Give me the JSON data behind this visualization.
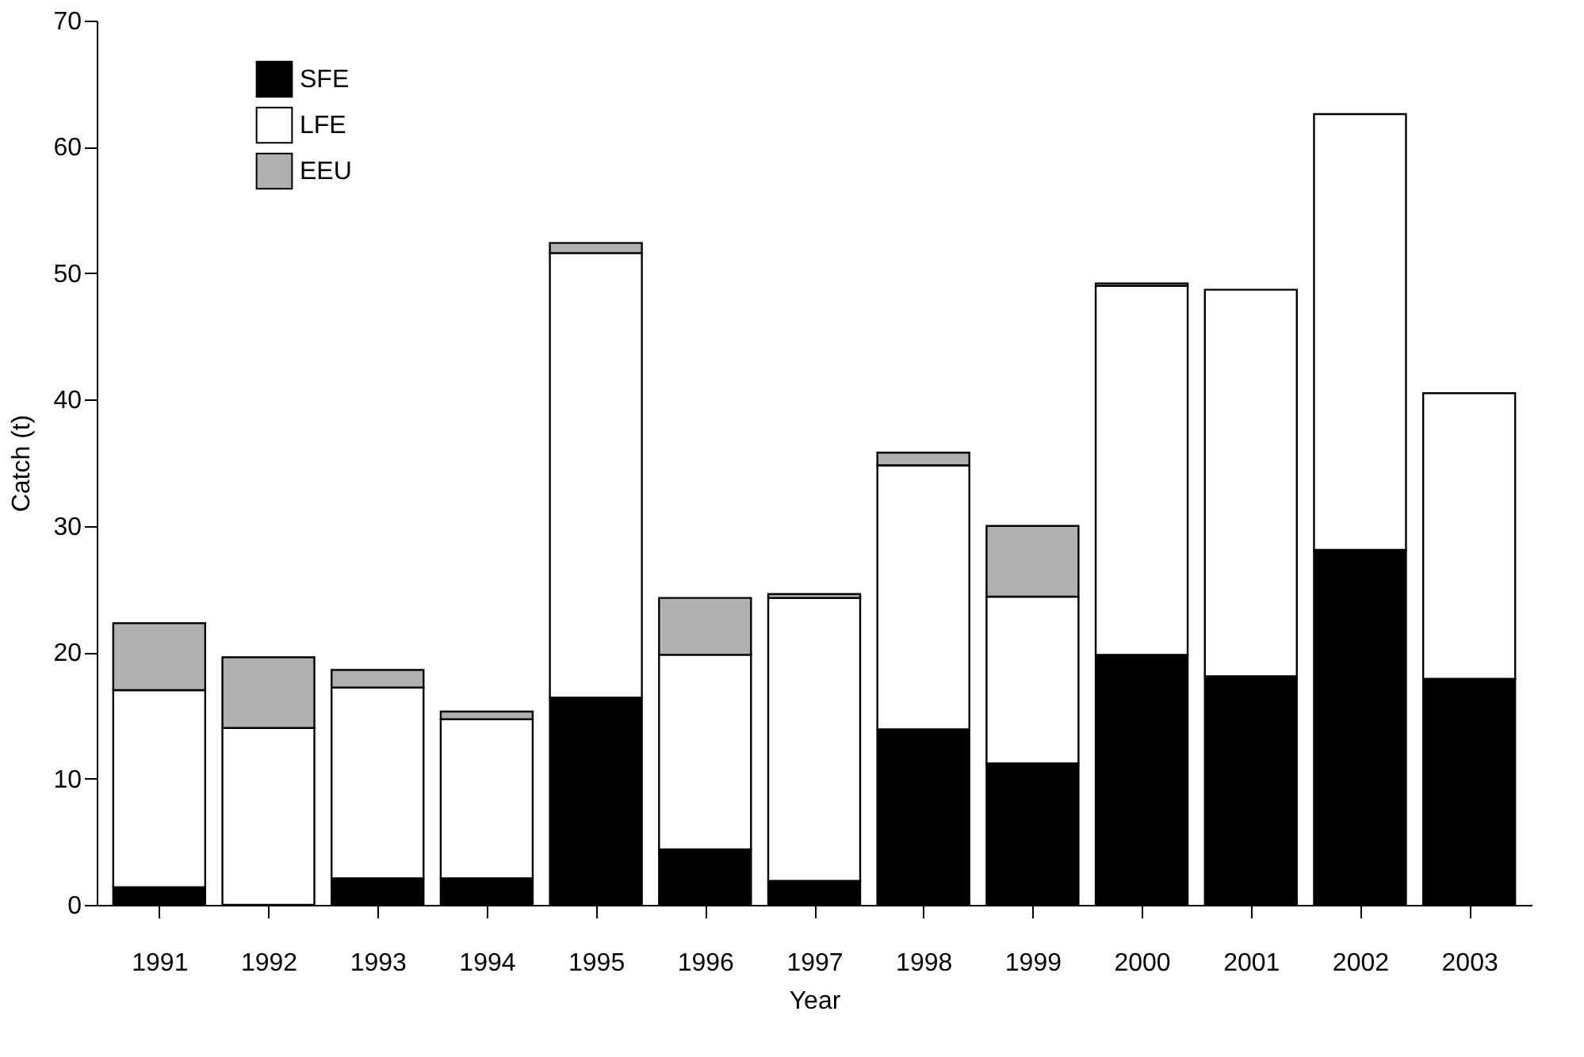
{
  "chart_data": {
    "type": "bar",
    "stacked": true,
    "xlabel": "Year",
    "ylabel": "Catch (t)",
    "categories": [
      "1991",
      "1992",
      "1993",
      "1994",
      "1995",
      "1996",
      "1997",
      "1998",
      "1999",
      "2000",
      "2001",
      "2002",
      "2003"
    ],
    "series": [
      {
        "name": "SFE",
        "color": "#000000",
        "values": [
          1.4,
          0,
          2.1,
          2.1,
          16.4,
          4.4,
          1.9,
          13.9,
          11.2,
          19.8,
          18.1,
          28.1,
          17.9
        ]
      },
      {
        "name": "LFE",
        "color": "#ffffff",
        "values": [
          15.6,
          14.0,
          15.1,
          12.6,
          35.2,
          15.4,
          22.4,
          20.9,
          13.2,
          29.2,
          30.6,
          34.5,
          22.6
        ]
      },
      {
        "name": "EEU",
        "color": "#b0b0b0",
        "values": [
          5.3,
          5.6,
          1.4,
          0.6,
          0.8,
          4.5,
          0.3,
          1.0,
          5.6,
          0.2,
          0,
          0,
          0
        ]
      }
    ],
    "ylim": [
      0,
      70
    ],
    "yticks": [
      0,
      10,
      20,
      30,
      40,
      50,
      60,
      70
    ],
    "grid": false,
    "legend": "top left"
  }
}
